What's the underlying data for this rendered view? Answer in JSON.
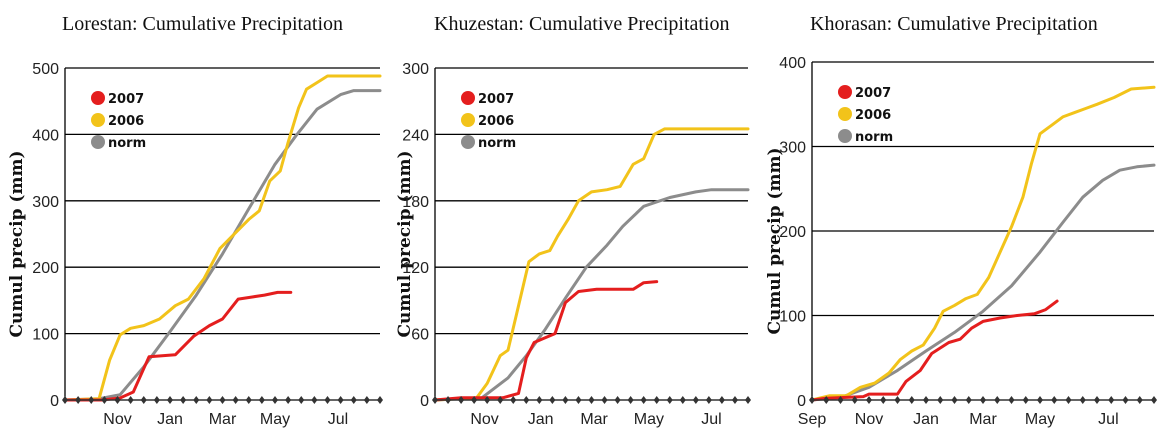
{
  "chart_data": [
    {
      "type": "line",
      "title": "Lorestan: Cumulative Precipitation",
      "ylabel": "Cumul precip (mm)",
      "xlabel": "",
      "ylim": [
        0,
        500
      ],
      "yticks": [
        0,
        100,
        200,
        300,
        400,
        500
      ],
      "xticks": [
        "Nov",
        "Jan",
        "Mar",
        "May",
        "Jul"
      ],
      "legend_position": "top-left",
      "grid": "horizontal",
      "series": [
        {
          "name": "2007",
          "color": "#e41e1e",
          "points": [
            [
              0,
              0
            ],
            [
              1.4,
              0
            ],
            [
              2.1,
              3
            ],
            [
              2.6,
              12
            ],
            [
              3.2,
              65
            ],
            [
              4.2,
              68
            ],
            [
              4.9,
              96
            ],
            [
              5.5,
              112
            ],
            [
              6.0,
              122
            ],
            [
              6.6,
              152
            ],
            [
              7.1,
              155
            ],
            [
              7.6,
              158
            ],
            [
              8.1,
              162
            ],
            [
              8.6,
              162
            ]
          ]
        },
        {
          "name": "2006",
          "color": "#f2c31a",
          "points": [
            [
              0,
              0
            ],
            [
              1.3,
              2
            ],
            [
              1.7,
              60
            ],
            [
              2.1,
              98
            ],
            [
              2.5,
              108
            ],
            [
              3.0,
              112
            ],
            [
              3.6,
              122
            ],
            [
              4.2,
              142
            ],
            [
              4.7,
              152
            ],
            [
              5.3,
              183
            ],
            [
              5.9,
              228
            ],
            [
              6.4,
              248
            ],
            [
              7.0,
              272
            ],
            [
              7.4,
              285
            ],
            [
              7.8,
              330
            ],
            [
              8.2,
              345
            ],
            [
              8.5,
              388
            ],
            [
              8.9,
              440
            ],
            [
              9.2,
              468
            ],
            [
              9.6,
              478
            ],
            [
              10.0,
              488
            ],
            [
              11.0,
              488
            ],
            [
              12,
              488
            ]
          ]
        },
        {
          "name": "norm",
          "color": "#8c8c8c",
          "points": [
            [
              0,
              0
            ],
            [
              1.3,
              2
            ],
            [
              2.1,
              8
            ],
            [
              3.0,
              50
            ],
            [
              4.0,
              103
            ],
            [
              5.0,
              158
            ],
            [
              6.0,
              220
            ],
            [
              7.0,
              288
            ],
            [
              8.0,
              355
            ],
            [
              8.8,
              398
            ],
            [
              9.6,
              438
            ],
            [
              10.5,
              460
            ],
            [
              11.0,
              466
            ],
            [
              12,
              466
            ]
          ]
        }
      ]
    },
    {
      "type": "line",
      "title": "Khuzestan: Cumulative Precipitation",
      "ylabel": "Cumul precip (mm)",
      "xlabel": "",
      "ylim": [
        0,
        300
      ],
      "yticks": [
        0,
        60,
        120,
        180,
        240,
        300
      ],
      "xticks": [
        "Nov",
        "Jan",
        "Mar",
        "May",
        "Jul"
      ],
      "legend_position": "top-left",
      "grid": "horizontal",
      "series": [
        {
          "name": "2007",
          "color": "#e41e1e",
          "points": [
            [
              0,
              0
            ],
            [
              1.0,
              2
            ],
            [
              2.6,
              2
            ],
            [
              3.2,
              6
            ],
            [
              3.5,
              38
            ],
            [
              3.8,
              52
            ],
            [
              4.2,
              56
            ],
            [
              4.6,
              60
            ],
            [
              5.0,
              88
            ],
            [
              5.5,
              98
            ],
            [
              6.2,
              100
            ],
            [
              7.0,
              100
            ],
            [
              7.6,
              100
            ],
            [
              8.0,
              106
            ],
            [
              8.5,
              107
            ]
          ]
        },
        {
          "name": "2006",
          "color": "#f2c31a",
          "points": [
            [
              0,
              0
            ],
            [
              1.6,
              2
            ],
            [
              2.0,
              15
            ],
            [
              2.5,
              40
            ],
            [
              2.8,
              45
            ],
            [
              3.2,
              85
            ],
            [
              3.6,
              125
            ],
            [
              4.0,
              132
            ],
            [
              4.4,
              135
            ],
            [
              4.7,
              148
            ],
            [
              5.1,
              163
            ],
            [
              5.5,
              180
            ],
            [
              6.0,
              188
            ],
            [
              6.6,
              190
            ],
            [
              7.1,
              193
            ],
            [
              7.6,
              213
            ],
            [
              8.0,
              218
            ],
            [
              8.4,
              240
            ],
            [
              8.8,
              245
            ],
            [
              12,
              245
            ]
          ]
        },
        {
          "name": "norm",
          "color": "#8c8c8c",
          "points": [
            [
              0,
              0
            ],
            [
              1.8,
              2
            ],
            [
              2.8,
              20
            ],
            [
              3.5,
              40
            ],
            [
              4.2,
              63
            ],
            [
              5.0,
              92
            ],
            [
              5.8,
              120
            ],
            [
              6.6,
              140
            ],
            [
              7.2,
              157
            ],
            [
              8.0,
              175
            ],
            [
              9.0,
              183
            ],
            [
              10.0,
              188
            ],
            [
              10.6,
              190
            ],
            [
              12,
              190
            ]
          ]
        }
      ]
    },
    {
      "type": "line",
      "title": "Khorasan: Cumulative Precipitation",
      "ylabel": "Cumul precip (mm)",
      "xlabel": "",
      "ylim": [
        0,
        400
      ],
      "yticks": [
        0,
        100,
        200,
        300,
        400
      ],
      "xticks": [
        "Sep",
        "Nov",
        "Jan",
        "Mar",
        "May",
        "Jul"
      ],
      "legend_position": "top-left",
      "grid": "horizontal",
      "series": [
        {
          "name": "2007",
          "color": "#e41e1e",
          "points": [
            [
              0,
              0
            ],
            [
              0.5,
              2
            ],
            [
              1.8,
              4
            ],
            [
              2.0,
              7
            ],
            [
              3.0,
              7
            ],
            [
              3.3,
              22
            ],
            [
              3.8,
              35
            ],
            [
              4.2,
              55
            ],
            [
              4.8,
              68
            ],
            [
              5.2,
              72
            ],
            [
              5.6,
              85
            ],
            [
              6.0,
              93
            ],
            [
              6.6,
              97
            ],
            [
              7.2,
              100
            ],
            [
              7.8,
              102
            ],
            [
              8.2,
              107
            ],
            [
              8.6,
              117
            ]
          ]
        },
        {
          "name": "2006",
          "color": "#f2c31a",
          "points": [
            [
              0,
              0
            ],
            [
              0.6,
              5
            ],
            [
              1.2,
              5
            ],
            [
              1.7,
              15
            ],
            [
              2.2,
              20
            ],
            [
              2.7,
              32
            ],
            [
              3.1,
              48
            ],
            [
              3.5,
              58
            ],
            [
              3.9,
              65
            ],
            [
              4.3,
              85
            ],
            [
              4.6,
              105
            ],
            [
              5.0,
              112
            ],
            [
              5.4,
              120
            ],
            [
              5.8,
              125
            ],
            [
              6.2,
              145
            ],
            [
              6.6,
              175
            ],
            [
              7.0,
              205
            ],
            [
              7.4,
              240
            ],
            [
              7.7,
              280
            ],
            [
              8.0,
              315
            ],
            [
              8.4,
              325
            ],
            [
              8.8,
              335
            ],
            [
              9.2,
              340
            ],
            [
              9.6,
              345
            ],
            [
              10.0,
              350
            ],
            [
              10.6,
              358
            ],
            [
              11.2,
              368
            ],
            [
              12,
              370
            ]
          ]
        },
        {
          "name": "norm",
          "color": "#8c8c8c",
          "points": [
            [
              0,
              0
            ],
            [
              1.0,
              3
            ],
            [
              2.0,
              15
            ],
            [
              3.0,
              35
            ],
            [
              4.0,
              58
            ],
            [
              5.0,
              80
            ],
            [
              6.0,
              105
            ],
            [
              7.0,
              135
            ],
            [
              8.0,
              175
            ],
            [
              8.8,
              210
            ],
            [
              9.5,
              240
            ],
            [
              10.2,
              260
            ],
            [
              10.8,
              272
            ],
            [
              11.4,
              276
            ],
            [
              12,
              278
            ]
          ]
        }
      ]
    }
  ]
}
